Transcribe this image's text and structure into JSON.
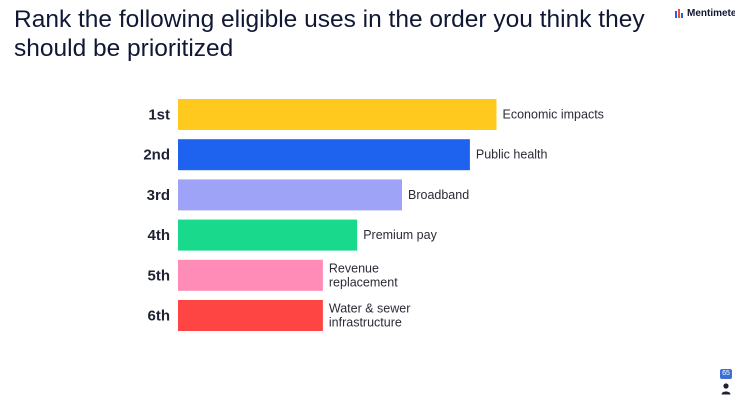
{
  "question": "Rank the following eligible uses in the order you think they should be prioritized",
  "brand": {
    "name": "Mentimeter"
  },
  "participants": {
    "count": "65",
    "icon": "person-icon"
  },
  "colors": [
    "#FFC91E",
    "#1E63F0",
    "#9EA3F7",
    "#19D98D",
    "#FF8CB7",
    "#FF4444"
  ],
  "chart_data": {
    "type": "bar",
    "orientation": "horizontal",
    "title": "Rank the following eligible uses in the order you think they should be prioritized",
    "rank_labels": [
      "1st",
      "2nd",
      "3rd",
      "4th",
      "5th",
      "6th"
    ],
    "categories": [
      "Economic impacts",
      "Public health",
      "Broadband",
      "Premium pay",
      "Revenue replacement",
      "Water & sewer infrastructure"
    ],
    "category_lines": [
      [
        "Economic impacts"
      ],
      [
        "Public health"
      ],
      [
        "Broadband"
      ],
      [
        "Premium pay"
      ],
      [
        "Revenue",
        "replacement"
      ],
      [
        "Water & sewer",
        "infrastructure"
      ]
    ],
    "values": [
      4.55,
      4.17,
      3.2,
      2.56,
      2.07,
      2.07
    ],
    "xlim": [
      0,
      6
    ],
    "grid": false,
    "legend": "none"
  }
}
